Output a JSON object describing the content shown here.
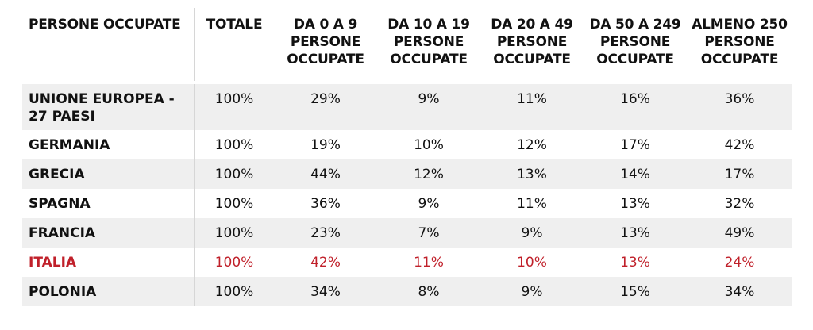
{
  "table": {
    "headers": [
      "PERSONE OCCUPATE",
      "TOTALE",
      "DA 0 A 9 PERSONE OCCUPATE",
      "DA 10 A 19 PERSONE OCCUPATE",
      "DA 20 A 49 PERSONE OCCUPATE",
      "DA 50 A 249 PERSONE OCCUPATE",
      "ALMENO 250 PERSONE OCCUPATE"
    ],
    "rows": [
      {
        "label": "UNIONE EUROPEA - 27 PAESI",
        "values": [
          "100%",
          "29%",
          "9%",
          "11%",
          "16%",
          "36%"
        ]
      },
      {
        "label": "GERMANIA",
        "values": [
          "100%",
          "19%",
          "10%",
          "12%",
          "17%",
          "42%"
        ]
      },
      {
        "label": "GRECIA",
        "values": [
          "100%",
          "44%",
          "12%",
          "13%",
          "14%",
          "17%"
        ]
      },
      {
        "label": "SPAGNA",
        "values": [
          "100%",
          "36%",
          "9%",
          "11%",
          "13%",
          "32%"
        ]
      },
      {
        "label": "FRANCIA",
        "values": [
          "100%",
          "23%",
          "7%",
          "9%",
          "13%",
          "49%"
        ]
      },
      {
        "label": "ITALIA",
        "values": [
          "100%",
          "42%",
          "11%",
          "10%",
          "13%",
          "24%"
        ]
      },
      {
        "label": "POLONIA",
        "values": [
          "100%",
          "34%",
          "8%",
          "9%",
          "15%",
          "34%"
        ]
      }
    ],
    "highlight_color": "#c0202a",
    "shade_color": "#efefef"
  }
}
